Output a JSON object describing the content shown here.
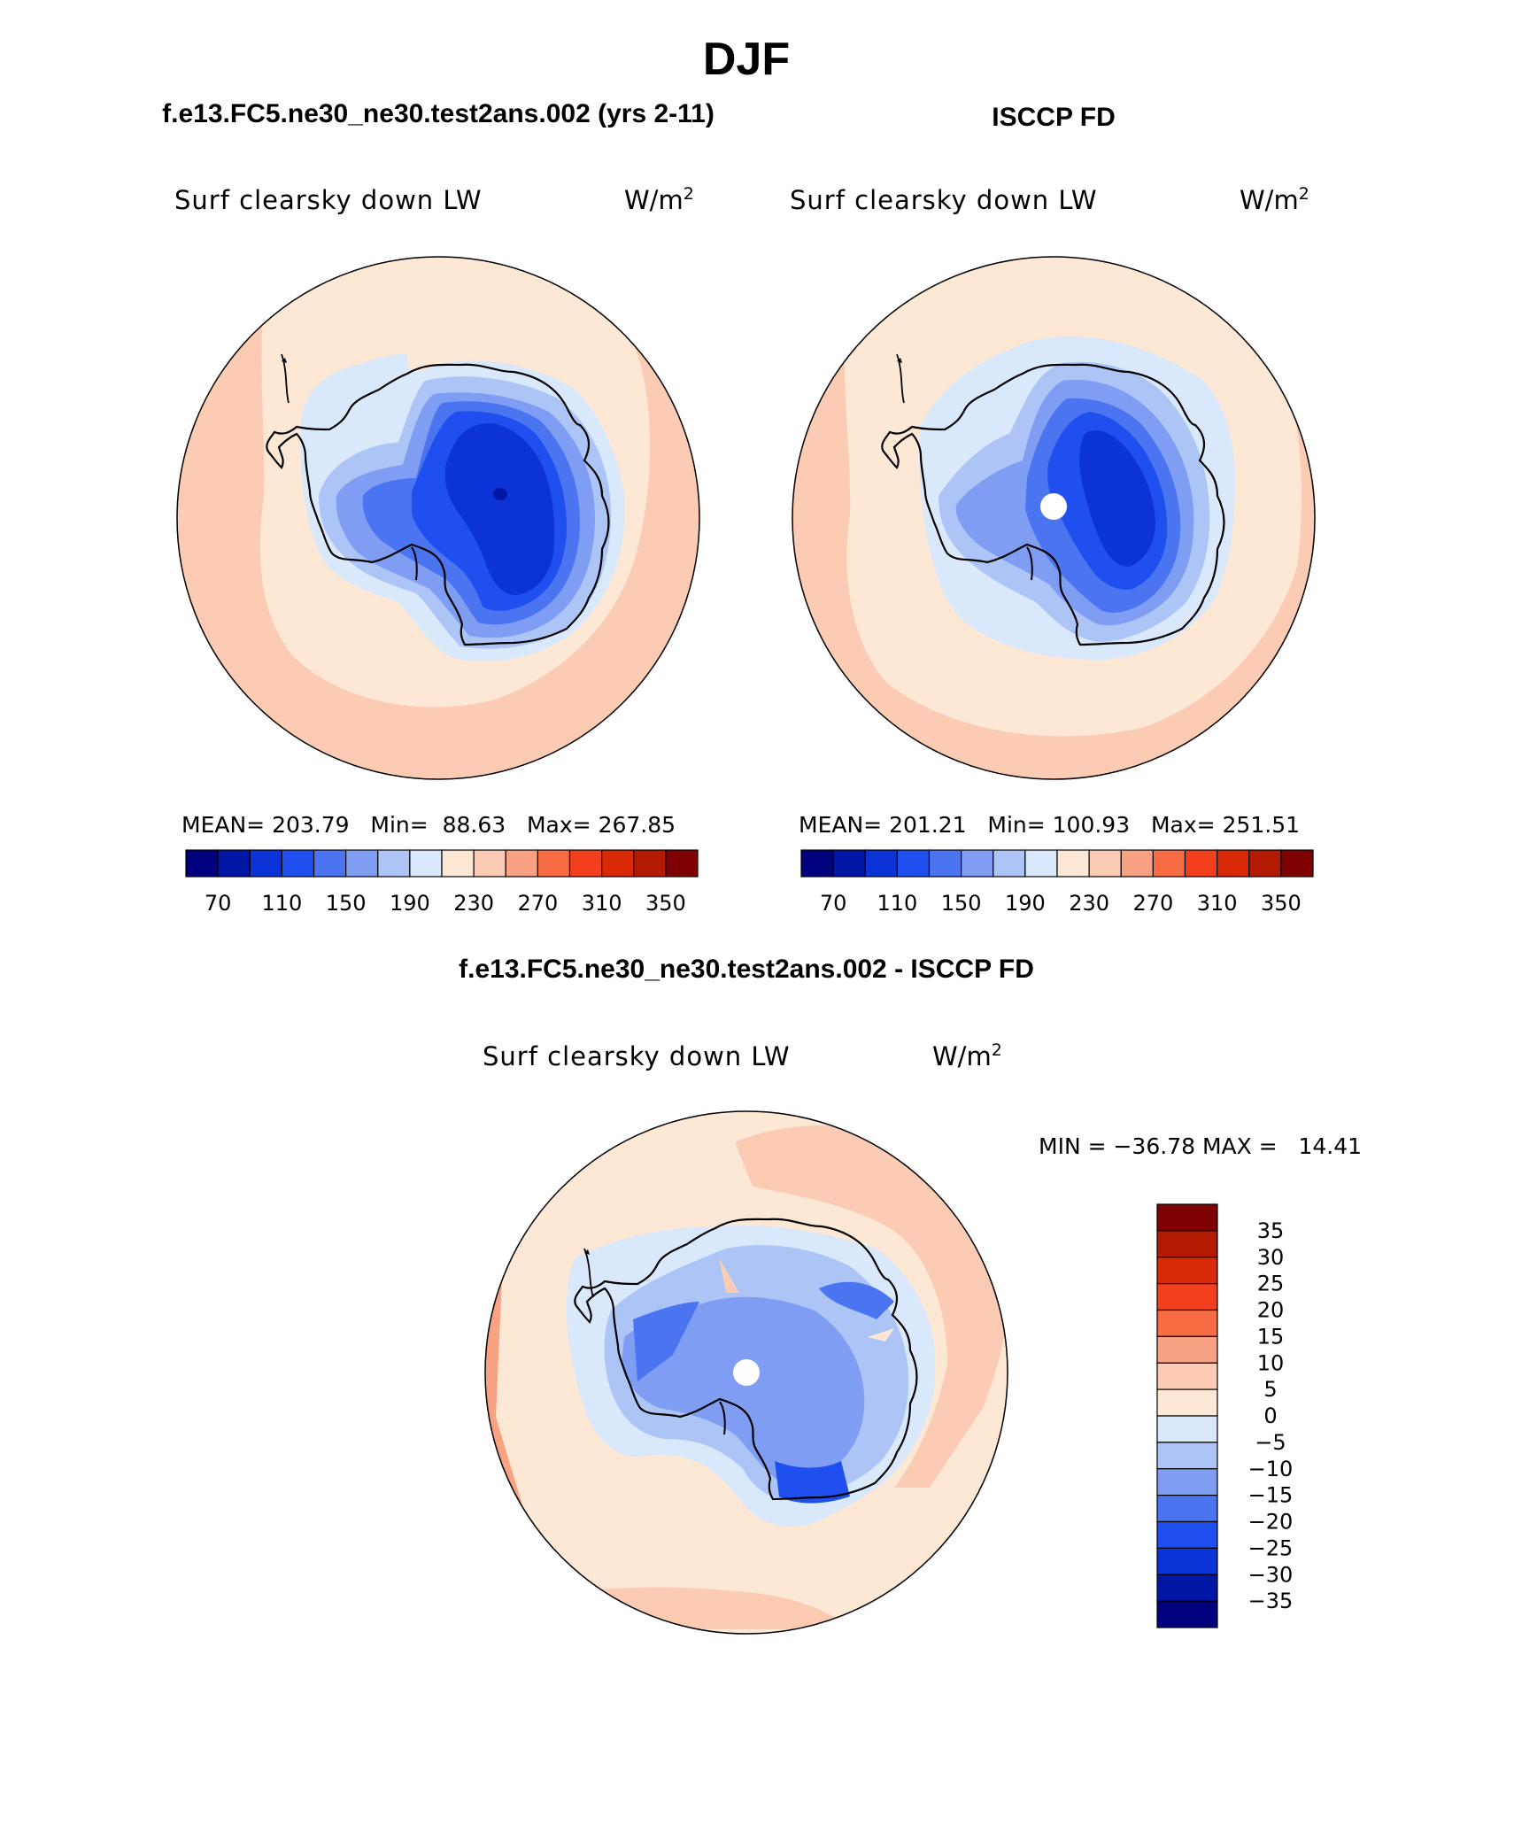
{
  "page": {
    "season": "DJF",
    "diff_title": "f.e13.FC5.ne30_ne30.test2ans.002 - ISCCP FD"
  },
  "panels": [
    {
      "id": "model",
      "case_title": "f.e13.FC5.ne30_ne30.test2ans.002 (yrs 2-11)",
      "variable": "Surf clearsky down LW",
      "units_base": "W/m",
      "units_exp": "2",
      "stats": "MEAN= 203.79   Min=  88.63   Max= 267.85",
      "mean": 203.79,
      "min": 88.63,
      "max": 267.85
    },
    {
      "id": "obs",
      "case_title": "ISCCP FD",
      "variable": "Surf clearsky down LW",
      "units_base": "W/m",
      "units_exp": "2",
      "stats": "MEAN= 201.21   Min= 100.93   Max= 251.51",
      "mean": 201.21,
      "min": 100.93,
      "max": 251.51
    }
  ],
  "difference": {
    "variable": "Surf clearsky down LW",
    "units_base": "W/m",
    "units_exp": "2",
    "minmax_text": "MIN = −36.78 MAX =   14.41",
    "min": -36.78,
    "max": 14.41
  },
  "colorbar_main": {
    "colors": [
      "#00007f",
      "#0017a5",
      "#0b33d6",
      "#1f4fee",
      "#4a74f0",
      "#7e9df3",
      "#adc4f7",
      "#d9e9fb",
      "#fde8d6",
      "#fccbb4",
      "#f9a283",
      "#f86c44",
      "#f2401c",
      "#d92a06",
      "#b21b00",
      "#7f0000"
    ],
    "labels": [
      "70",
      "110",
      "150",
      "190",
      "230",
      "270",
      "310",
      "350"
    ]
  },
  "colorbar_diff": {
    "colors": [
      "#00007f",
      "#0017a5",
      "#0b33d6",
      "#1f4fee",
      "#4a74f0",
      "#7e9df3",
      "#adc4f7",
      "#d9e9fb",
      "#fde8d6",
      "#fccbb4",
      "#f9a283",
      "#f86c44",
      "#f2401c",
      "#d92a06",
      "#b21b00",
      "#7f0000"
    ],
    "labels": [
      "35",
      "30",
      "25",
      "20",
      "15",
      "10",
      "5",
      "0",
      "−5",
      "−10",
      "−15",
      "−20",
      "−25",
      "−30",
      "−35"
    ]
  }
}
